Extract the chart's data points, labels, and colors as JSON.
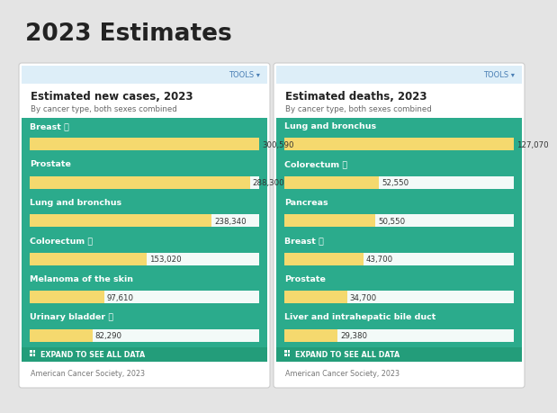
{
  "title": "2023 Estimates",
  "bg_color": "#e4e4e4",
  "panel_bg": "#2bab8c",
  "card_bg": "#ffffff",
  "header_bg": "#ddeef8",
  "bar_color": "#f5d96e",
  "bar_bg_color": "#ffffff",
  "text_white": "#ffffff",
  "text_dark": "#222222",
  "tools_color": "#4a7fb5",
  "expand_bg": "#239d7a",
  "footer_text": "#777777",
  "left_panel": {
    "title": "Estimated new cases, 2023",
    "subtitle": "By cancer type, both sexes combined",
    "items": [
      {
        "label": "Breast",
        "info": true,
        "value": 300590,
        "display": "300,590"
      },
      {
        "label": "Prostate",
        "info": false,
        "value": 288300,
        "display": "288,300"
      },
      {
        "label": "Lung and bronchus",
        "info": false,
        "value": 238340,
        "display": "238,340"
      },
      {
        "label": "Colorectum",
        "info": true,
        "value": 153020,
        "display": "153,020"
      },
      {
        "label": "Melanoma of the skin",
        "info": false,
        "value": 97610,
        "display": "97,610"
      },
      {
        "label": "Urinary bladder",
        "info": true,
        "value": 82290,
        "display": "82,290"
      }
    ],
    "max_value": 300590,
    "footer": "American Cancer Society, 2023"
  },
  "right_panel": {
    "title": "Estimated deaths, 2023",
    "subtitle": "By cancer type, both sexes combined",
    "items": [
      {
        "label": "Lung and bronchus",
        "info": false,
        "value": 127070,
        "display": "127,070"
      },
      {
        "label": "Colorectum",
        "info": true,
        "value": 52550,
        "display": "52,550"
      },
      {
        "label": "Pancreas",
        "info": false,
        "value": 50550,
        "display": "50,550"
      },
      {
        "label": "Breast",
        "info": true,
        "value": 43700,
        "display": "43,700"
      },
      {
        "label": "Prostate",
        "info": false,
        "value": 34700,
        "display": "34,700"
      },
      {
        "label": "Liver and intrahepatic bile duct",
        "info": false,
        "value": 29380,
        "display": "29,380"
      }
    ],
    "max_value": 127070,
    "footer": "American Cancer Society, 2023"
  }
}
